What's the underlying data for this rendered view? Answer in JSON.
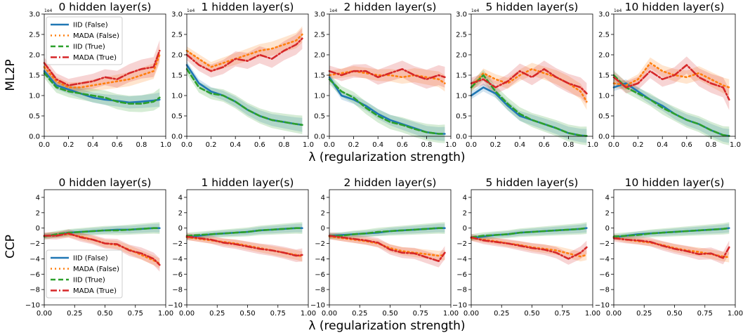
{
  "figure": {
    "common_xlabel": "λ (regularization strength)",
    "row_labels": [
      "ML2P",
      "CCP"
    ],
    "offset_text": "1e4"
  },
  "legend": [
    {
      "label": "IID (False)",
      "color": "#1f77b4",
      "style": "solid"
    },
    {
      "label": "MADA (False)",
      "color": "#ff7f0e",
      "style": "dotted"
    },
    {
      "label": "IID (True)",
      "color": "#2ca02c",
      "style": "dashed"
    },
    {
      "label": "MADA (True)",
      "color": "#d62728",
      "style": "dashdot"
    }
  ],
  "chart_data": [
    {
      "type": "line",
      "row": "ML2P",
      "title": "0 hidden layer(s)",
      "xlim": [
        0,
        1
      ],
      "ylim": [
        0,
        30000
      ],
      "x": [
        0,
        0.1,
        0.2,
        0.3,
        0.4,
        0.5,
        0.6,
        0.7,
        0.8,
        0.9,
        0.95
      ],
      "xticks": [
        "0.0",
        "0.2",
        "0.4",
        "0.6",
        "0.8",
        "1.0"
      ],
      "yticks": [
        "0.0",
        "0.5",
        "1.0",
        "1.5",
        "2.0",
        "2.5",
        "3.0"
      ],
      "series": [
        {
          "name": "IID (False)",
          "values": [
            16000,
            12500,
            11500,
            10500,
            9500,
            9000,
            8700,
            8300,
            8500,
            8800,
            9000
          ]
        },
        {
          "name": "MADA (False)",
          "values": [
            17000,
            13500,
            12000,
            12000,
            12500,
            13000,
            13500,
            14000,
            15000,
            16000,
            20000
          ]
        },
        {
          "name": "IID (True)",
          "values": [
            15500,
            12000,
            11000,
            10500,
            10000,
            9500,
            8500,
            8000,
            8000,
            8500,
            9500
          ]
        },
        {
          "name": "MADA (True)",
          "values": [
            18000,
            14000,
            12500,
            13000,
            13500,
            14500,
            14000,
            15500,
            16500,
            17000,
            21000
          ]
        }
      ]
    },
    {
      "type": "line",
      "row": "ML2P",
      "title": "1 hidden layer(s)",
      "xlim": [
        0,
        1
      ],
      "ylim": [
        0,
        30000
      ],
      "x": [
        0,
        0.1,
        0.2,
        0.3,
        0.4,
        0.5,
        0.6,
        0.7,
        0.8,
        0.9,
        0.95
      ],
      "xticks": [
        "0.0",
        "0.2",
        "0.4",
        "0.6",
        "0.8",
        "1.0"
      ],
      "yticks": [
        "0.0",
        "0.5",
        "1.0",
        "1.5",
        "2.0",
        "2.5",
        "3.0"
      ],
      "series": [
        {
          "name": "IID (False)",
          "values": [
            17500,
            13000,
            11000,
            10000,
            8500,
            6500,
            5000,
            4000,
            3500,
            3000,
            2800
          ]
        },
        {
          "name": "MADA (False)",
          "values": [
            21000,
            19000,
            17000,
            18000,
            19000,
            20000,
            21000,
            21500,
            22500,
            23500,
            25000
          ]
        },
        {
          "name": "IID (True)",
          "values": [
            16500,
            12000,
            10500,
            10000,
            8500,
            6500,
            5000,
            4000,
            3500,
            3000,
            2800
          ]
        },
        {
          "name": "MADA (True)",
          "values": [
            20000,
            17500,
            16000,
            17000,
            19000,
            18500,
            20000,
            19000,
            21000,
            22500,
            24000
          ]
        }
      ]
    },
    {
      "type": "line",
      "row": "ML2P",
      "title": "2 hidden layer(s)",
      "xlim": [
        0,
        1
      ],
      "ylim": [
        0,
        30000
      ],
      "x": [
        0,
        0.1,
        0.2,
        0.3,
        0.4,
        0.5,
        0.6,
        0.7,
        0.8,
        0.9,
        0.95
      ],
      "xticks": [
        "0.0",
        "0.2",
        "0.4",
        "0.6",
        "0.8",
        "1.0"
      ],
      "yticks": [
        "0.0",
        "0.5",
        "1.0",
        "1.5",
        "2.0",
        "2.5",
        "3.0"
      ],
      "series": [
        {
          "name": "IID (False)",
          "values": [
            14500,
            10000,
            9000,
            7500,
            5500,
            4000,
            3000,
            2000,
            1000,
            600,
            600
          ]
        },
        {
          "name": "MADA (False)",
          "values": [
            15000,
            15500,
            16000,
            15500,
            15000,
            15000,
            14500,
            15000,
            14500,
            14000,
            13000
          ]
        },
        {
          "name": "IID (True)",
          "values": [
            14000,
            11000,
            9500,
            7000,
            5000,
            3500,
            2800,
            1800,
            1000,
            600,
            600
          ]
        },
        {
          "name": "MADA (True)",
          "values": [
            16000,
            15000,
            16000,
            16000,
            14500,
            15500,
            16500,
            15000,
            14000,
            15000,
            14500
          ]
        }
      ]
    },
    {
      "type": "line",
      "row": "ML2P",
      "title": "5 hidden layer(s)",
      "xlim": [
        0,
        1
      ],
      "ylim": [
        0,
        30000
      ],
      "x": [
        0,
        0.1,
        0.2,
        0.3,
        0.4,
        0.5,
        0.6,
        0.7,
        0.8,
        0.9,
        0.95
      ],
      "xticks": [
        "0.0",
        "0.2",
        "0.4",
        "0.6",
        "0.8",
        "1.0"
      ],
      "yticks": [
        "0.0",
        "0.5",
        "1.0",
        "1.5",
        "2.0",
        "2.5",
        "3.0"
      ],
      "series": [
        {
          "name": "IID (False)",
          "values": [
            10000,
            12000,
            10500,
            7500,
            5000,
            4000,
            3000,
            2000,
            800,
            200,
            100
          ]
        },
        {
          "name": "MADA (False)",
          "values": [
            12000,
            15500,
            14000,
            13000,
            15000,
            16500,
            15500,
            14500,
            13000,
            11000,
            8500
          ]
        },
        {
          "name": "IID (True)",
          "values": [
            12000,
            15000,
            11000,
            8000,
            5500,
            4000,
            3000,
            2000,
            800,
            200,
            100
          ]
        },
        {
          "name": "MADA (True)",
          "values": [
            13000,
            14000,
            12000,
            13500,
            16000,
            14500,
            16500,
            14500,
            13000,
            12000,
            10500
          ]
        }
      ]
    },
    {
      "type": "line",
      "row": "ML2P",
      "title": "10 hidden layer(s)",
      "xlim": [
        0,
        1
      ],
      "ylim": [
        0,
        30000
      ],
      "x": [
        0,
        0.1,
        0.2,
        0.3,
        0.4,
        0.5,
        0.6,
        0.7,
        0.8,
        0.9,
        0.95
      ],
      "xticks": [
        "0.0",
        "0.2",
        "0.4",
        "0.6",
        "0.8",
        "1.0"
      ],
      "yticks": [
        "0.0",
        "0.5",
        "1.0",
        "1.5",
        "2.0",
        "2.5",
        "3.0"
      ],
      "series": [
        {
          "name": "IID (False)",
          "values": [
            12000,
            13000,
            11000,
            9000,
            7500,
            5500,
            4000,
            3000,
            1500,
            300,
            100
          ]
        },
        {
          "name": "MADA (False)",
          "values": [
            13000,
            12500,
            14000,
            18000,
            16000,
            15000,
            14500,
            15500,
            14000,
            12500,
            12000
          ]
        },
        {
          "name": "IID (True)",
          "values": [
            15000,
            12000,
            10500,
            9000,
            7000,
            5500,
            4000,
            3000,
            1500,
            300,
            100
          ]
        },
        {
          "name": "MADA (True)",
          "values": [
            14500,
            12000,
            13000,
            16000,
            14000,
            15000,
            17500,
            14500,
            13000,
            12000,
            9000
          ]
        }
      ]
    },
    {
      "type": "line",
      "row": "CCP",
      "title": "0 hidden layer(s)",
      "xlim": [
        0,
        1
      ],
      "ylim": [
        -10,
        5
      ],
      "x": [
        0,
        0.1,
        0.2,
        0.3,
        0.4,
        0.5,
        0.6,
        0.7,
        0.8,
        0.9,
        0.95
      ],
      "xticks": [
        "0.00",
        "0.25",
        "0.50",
        "0.75",
        "1.00"
      ],
      "yticks": [
        "−10",
        "−8",
        "−6",
        "−4",
        "−2",
        "0",
        "2",
        "4"
      ],
      "series": [
        {
          "name": "IID (False)",
          "values": [
            -1,
            -0.9,
            -0.6,
            -0.5,
            -0.4,
            -0.3,
            -0.2,
            -0.2,
            -0.1,
            0,
            0
          ]
        },
        {
          "name": "MADA (False)",
          "values": [
            -1,
            -0.9,
            -0.8,
            -1.1,
            -1.5,
            -2,
            -2.2,
            -2.8,
            -3.5,
            -4.2,
            -4.6
          ]
        },
        {
          "name": "IID (True)",
          "values": [
            -1.1,
            -0.8,
            -0.6,
            -0.5,
            -0.4,
            -0.3,
            -0.3,
            -0.2,
            -0.1,
            0,
            0
          ]
        },
        {
          "name": "MADA (True)",
          "values": [
            -1,
            -1,
            -0.7,
            -1.2,
            -1.5,
            -2,
            -2.1,
            -2.9,
            -3.3,
            -4,
            -4.8
          ]
        }
      ]
    },
    {
      "type": "line",
      "row": "CCP",
      "title": "1 hidden layer(s)",
      "xlim": [
        0,
        1
      ],
      "ylim": [
        -10,
        5
      ],
      "x": [
        0,
        0.1,
        0.2,
        0.3,
        0.4,
        0.5,
        0.6,
        0.7,
        0.8,
        0.9,
        0.95
      ],
      "xticks": [
        "0.00",
        "0.25",
        "0.50",
        "0.75",
        "1.00"
      ],
      "yticks": [
        "−10",
        "−8",
        "−6",
        "−4",
        "−2",
        "0",
        "2",
        "4"
      ],
      "series": [
        {
          "name": "IID (False)",
          "values": [
            -1.2,
            -1,
            -0.8,
            -0.7,
            -0.6,
            -0.5,
            -0.3,
            -0.2,
            -0.1,
            0,
            0
          ]
        },
        {
          "name": "MADA (False)",
          "values": [
            -1.2,
            -1.4,
            -1.6,
            -1.8,
            -2,
            -2.3,
            -2.6,
            -2.9,
            -3.2,
            -3.5,
            -3.7
          ]
        },
        {
          "name": "IID (True)",
          "values": [
            -1,
            -0.9,
            -0.8,
            -0.7,
            -0.6,
            -0.5,
            -0.3,
            -0.2,
            -0.1,
            0,
            0
          ]
        },
        {
          "name": "MADA (True)",
          "values": [
            -1.1,
            -1.3,
            -1.5,
            -1.9,
            -2.1,
            -2.4,
            -2.7,
            -2.9,
            -3.2,
            -3.6,
            -3.5
          ]
        }
      ]
    },
    {
      "type": "line",
      "row": "CCP",
      "title": "2 hidden layer(s)",
      "xlim": [
        0,
        1
      ],
      "ylim": [
        -10,
        5
      ],
      "x": [
        0,
        0.1,
        0.2,
        0.3,
        0.4,
        0.5,
        0.6,
        0.7,
        0.8,
        0.9,
        0.95
      ],
      "xticks": [
        "0.00",
        "0.25",
        "0.50",
        "0.75",
        "1.00"
      ],
      "yticks": [
        "−10",
        "−8",
        "−6",
        "−4",
        "−2",
        "0",
        "2",
        "4"
      ],
      "series": [
        {
          "name": "IID (False)",
          "values": [
            -1,
            -0.9,
            -0.8,
            -0.7,
            -0.6,
            -0.4,
            -0.3,
            -0.2,
            -0.1,
            0,
            0
          ]
        },
        {
          "name": "MADA (False)",
          "values": [
            -1.1,
            -1.3,
            -1.5,
            -1.7,
            -2,
            -2.6,
            -3,
            -3.2,
            -3.4,
            -3.6,
            -3.5
          ]
        },
        {
          "name": "IID (True)",
          "values": [
            -1,
            -1,
            -0.8,
            -0.7,
            -0.5,
            -0.4,
            -0.3,
            -0.2,
            -0.1,
            0,
            0
          ]
        },
        {
          "name": "MADA (True)",
          "values": [
            -1,
            -1.2,
            -1.4,
            -1.6,
            -1.9,
            -2.8,
            -3.2,
            -3.3,
            -3.8,
            -4.3,
            -3.2
          ]
        }
      ]
    },
    {
      "type": "line",
      "row": "CCP",
      "title": "5 hidden layer(s)",
      "xlim": [
        0,
        1
      ],
      "ylim": [
        -10,
        5
      ],
      "x": [
        0,
        0.1,
        0.2,
        0.3,
        0.4,
        0.5,
        0.6,
        0.7,
        0.8,
        0.9,
        0.95
      ],
      "xticks": [
        "0.00",
        "0.25",
        "0.50",
        "0.75",
        "1.00"
      ],
      "yticks": [
        "−10",
        "−8",
        "−6",
        "−4",
        "−2",
        "0",
        "2",
        "4"
      ],
      "series": [
        {
          "name": "IID (False)",
          "values": [
            -1.3,
            -1.1,
            -0.9,
            -0.8,
            -0.6,
            -0.5,
            -0.4,
            -0.3,
            -0.2,
            -0.1,
            0
          ]
        },
        {
          "name": "MADA (False)",
          "values": [
            -1.3,
            -1.5,
            -1.7,
            -2,
            -2.2,
            -2.5,
            -2.7,
            -2.9,
            -3.3,
            -3.7,
            -3.5
          ]
        },
        {
          "name": "IID (True)",
          "values": [
            -1.2,
            -1,
            -0.9,
            -0.8,
            -0.6,
            -0.5,
            -0.4,
            -0.3,
            -0.2,
            -0.1,
            0
          ]
        },
        {
          "name": "MADA (True)",
          "values": [
            -1.2,
            -1.6,
            -1.8,
            -2,
            -2.3,
            -2.6,
            -2.8,
            -3.2,
            -4,
            -3.2,
            -2.5
          ]
        }
      ]
    },
    {
      "type": "line",
      "row": "CCP",
      "title": "10 hidden layer(s)",
      "xlim": [
        0,
        1
      ],
      "ylim": [
        -10,
        5
      ],
      "x": [
        0,
        0.1,
        0.2,
        0.3,
        0.4,
        0.5,
        0.6,
        0.7,
        0.8,
        0.9,
        0.95
      ],
      "xticks": [
        "0.00",
        "0.25",
        "0.50",
        "0.75",
        "1.00"
      ],
      "yticks": [
        "−10",
        "−8",
        "−6",
        "−4",
        "−2",
        "0",
        "2",
        "4"
      ],
      "series": [
        {
          "name": "IID (False)",
          "values": [
            -1.2,
            -1,
            -0.8,
            -0.7,
            -0.6,
            -0.5,
            -0.4,
            -0.3,
            -0.2,
            -0.1,
            0
          ]
        },
        {
          "name": "MADA (False)",
          "values": [
            -1.2,
            -1.5,
            -1.7,
            -1.9,
            -2.2,
            -2.6,
            -2.9,
            -3.1,
            -3.4,
            -3.7,
            -3.8
          ]
        },
        {
          "name": "IID (True)",
          "values": [
            -1.1,
            -1,
            -0.9,
            -0.7,
            -0.6,
            -0.5,
            -0.4,
            -0.3,
            -0.2,
            -0.1,
            0
          ]
        },
        {
          "name": "MADA (True)",
          "values": [
            -1.3,
            -1.5,
            -1.6,
            -1.8,
            -2.3,
            -2.7,
            -3,
            -3.4,
            -3.3,
            -3.9,
            -2.5
          ]
        }
      ]
    }
  ]
}
